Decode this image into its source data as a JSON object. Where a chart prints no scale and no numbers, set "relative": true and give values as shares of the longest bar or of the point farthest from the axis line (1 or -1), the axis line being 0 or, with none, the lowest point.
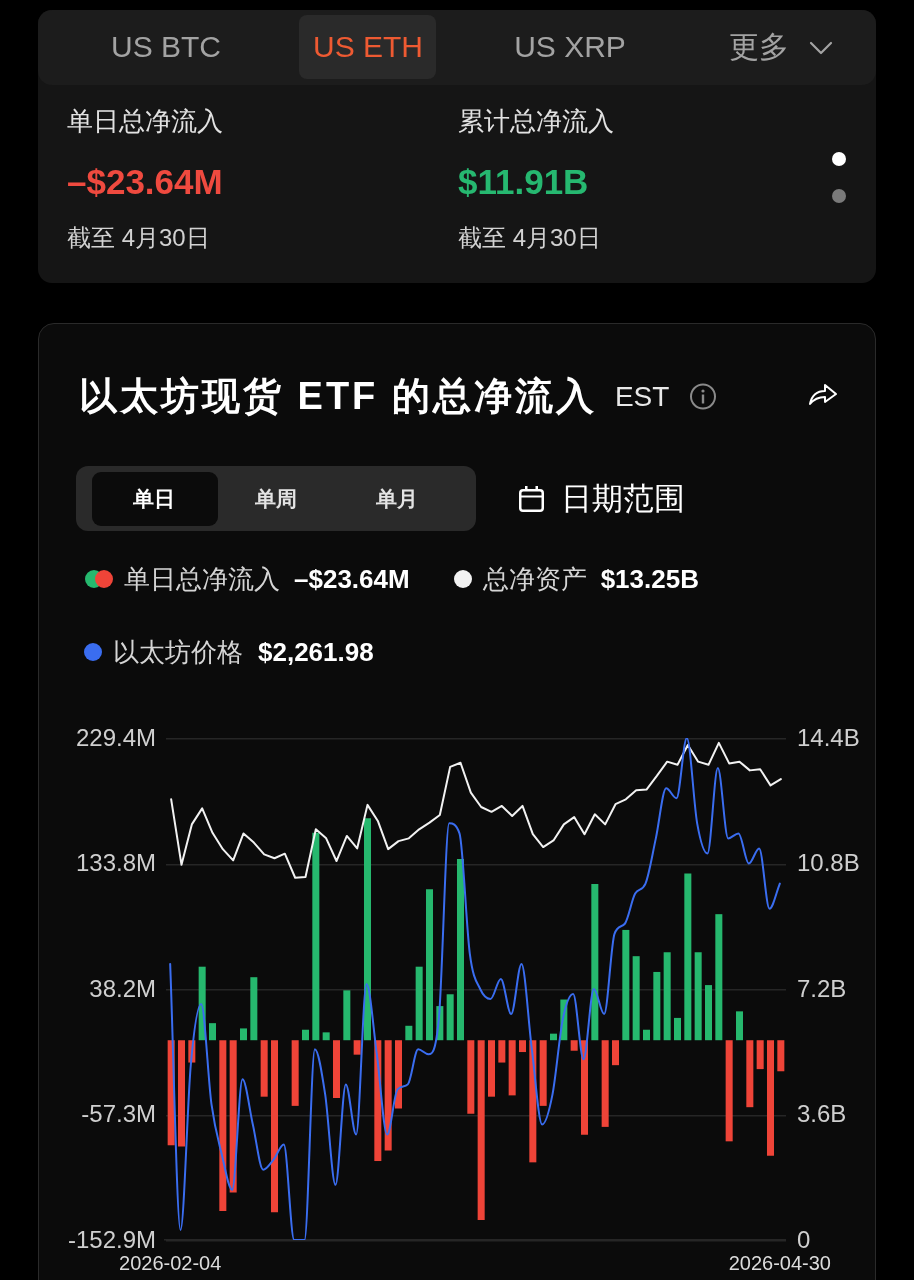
{
  "chart_data": [
    {
      "type": "other",
      "annotations": [
        "US BTC",
        "US ETH",
        "US XRP",
        "更多",
        "单日总净流入",
        "–$23.64M",
        "截至 4月30日",
        "累计总净流入",
        "$11.91B",
        "截至 4月30日"
      ]
    },
    {
      "type": "bar",
      "title": "以太坊现货 ETF 的总净流入",
      "subtitle": "EST",
      "tick_labels": "y",
      "categories": [
        "2026-02-04",
        null,
        null,
        null,
        null,
        null,
        null,
        null,
        null,
        null,
        null,
        null,
        null,
        null,
        null,
        null,
        null,
        null,
        null,
        null,
        null,
        null,
        null,
        null,
        null,
        null,
        null,
        null,
        null,
        null,
        null,
        null,
        null,
        null,
        null,
        null,
        null,
        null,
        null,
        null,
        null,
        null,
        null,
        null,
        null,
        null,
        null,
        null,
        null,
        null,
        null,
        null,
        null,
        null,
        null,
        null,
        null,
        null,
        null,
        "2026-04-30"
      ],
      "series": [
        {
          "name": "单日总净流入",
          "type": "bar",
          "values": [
            -80,
            -81,
            -17,
            56,
            13,
            -130,
            -116,
            9,
            48,
            -43,
            -131,
            null,
            -50,
            8,
            158,
            6,
            -44,
            38,
            -11,
            169,
            -92,
            -84,
            -52,
            11,
            56,
            115,
            26,
            35,
            138,
            -56,
            -137,
            -43,
            -17,
            -42,
            -9,
            -93,
            -50,
            5,
            31,
            -8,
            -72,
            119,
            -66,
            -19,
            84,
            64,
            8,
            52,
            67,
            17,
            127,
            67,
            42,
            96,
            -77,
            22,
            -51,
            -22,
            -88,
            -23.64
          ],
          "colors": [
            "#ef4438",
            "#ef4438",
            "#ef4438",
            "#26b86e",
            "#26b86e",
            "#ef4438",
            "#ef4438",
            "#26b86e",
            "#26b86e",
            "#ef4438",
            "#ef4438",
            "#26b86e",
            "#ef4438",
            "#26b86e",
            "#26b86e",
            "#26b86e",
            "#ef4438",
            "#26b86e",
            "#ef4438",
            "#26b86e",
            "#ef4438",
            "#ef4438",
            "#ef4438",
            "#26b86e",
            "#26b86e",
            "#26b86e",
            "#26b86e",
            "#26b86e",
            "#26b86e",
            "#ef4438",
            "#ef4438",
            "#ef4438",
            "#ef4438",
            "#ef4438",
            "#ef4438",
            "#ef4438",
            "#ef4438",
            "#26b86e",
            "#26b86e",
            "#ef4438",
            "#ef4438",
            "#26b86e",
            "#ef4438",
            "#ef4438",
            "#26b86e",
            "#26b86e",
            "#26b86e",
            "#26b86e",
            "#26b86e",
            "#26b86e",
            "#26b86e",
            "#26b86e",
            "#26b86e",
            "#26b86e",
            "#ef4438",
            "#26b86e",
            "#ef4438",
            "#ef4438",
            "#ef4438",
            "#ef4438"
          ]
        },
        {
          "name": "总净资产",
          "type": "line",
          "axis": "y2",
          "color": "#f2f2f2",
          "values": [
            12.67,
            10.79,
            11.95,
            12.41,
            11.71,
            11.24,
            10.92,
            11.69,
            11.43,
            11.09,
            10.98,
            11.11,
            10.42,
            10.44,
            11.81,
            11.55,
            10.9,
            11.62,
            11.26,
            12.51,
            12.05,
            11.24,
            11.47,
            11.55,
            11.81,
            12.0,
            12.22,
            13.6,
            13.72,
            12.86,
            12.45,
            12.31,
            12.48,
            12.19,
            12.48,
            11.67,
            11.3,
            11.49,
            11.95,
            12.16,
            11.67,
            12.24,
            11.95,
            12.53,
            12.67,
            12.93,
            12.95,
            13.34,
            13.75,
            13.66,
            14.23,
            13.75,
            13.66,
            14.29,
            13.7,
            13.75,
            13.5,
            13.53,
            13.07,
            13.25
          ]
        }
      ],
      "ylim": [
        -152.9,
        229.4
      ],
      "yticks": [
        {
          "value": -152.9,
          "label": "-152.9M"
        },
        {
          "value": -57.3,
          "label": "-57.3M"
        },
        {
          "value": 38.2,
          "label": "38.2M"
        },
        {
          "value": 133.8,
          "label": "133.8M"
        },
        {
          "value": 229.4,
          "label": "229.4M"
        }
      ],
      "y2lim": [
        0,
        14.4
      ],
      "y2ticks": [
        0,
        {
          "value": 3.6,
          "label": "3.6B"
        },
        {
          "value": 7.2,
          "label": "7.2B"
        },
        {
          "value": 10.8,
          "label": "10.8B"
        },
        {
          "value": 14.4,
          "label": "14.4B"
        }
      ],
      "grid": "y",
      "legend": "top left",
      "marker": "none",
      "annotations": [
        "单日",
        "单周",
        "单月",
        "日期范围",
        "–$23.64M",
        "$13.25B",
        "$2,261.98"
      ]
    },
    {
      "type": "line",
      "relative": true,
      "categories": [
        "2026-02-04",
        null,
        null,
        null,
        null,
        null,
        null,
        null,
        null,
        null,
        null,
        null,
        null,
        null,
        null,
        null,
        null,
        null,
        null,
        null,
        null,
        null,
        null,
        null,
        null,
        null,
        null,
        null,
        null,
        null,
        null,
        null,
        null,
        null,
        null,
        null,
        null,
        null,
        null,
        null,
        null,
        null,
        null,
        null,
        null,
        null,
        null,
        null,
        null,
        null,
        null,
        null,
        null,
        null,
        null,
        null,
        null,
        null,
        null,
        "2026-04-30"
      ],
      "series": [
        {
          "name": "以太坊价格",
          "color": "#3a6df0",
          "values": [
            0.55,
            0.02,
            0.35,
            0.47,
            0.27,
            0.17,
            0.1,
            0.32,
            0.23,
            0.14,
            0.16,
            0.19,
            0,
            0,
            0.38,
            0.29,
            0.11,
            0.31,
            0.21,
            0.51,
            0.37,
            0.21,
            0.3,
            0.31,
            0.38,
            0.37,
            0.44,
            0.83,
            0.81,
            0.57,
            0.5,
            0.48,
            0.52,
            0.45,
            0.55,
            0.38,
            0.23,
            0.29,
            0.44,
            0.49,
            0.36,
            0.5,
            0.45,
            0.61,
            0.63,
            0.69,
            0.71,
            0.8,
            0.9,
            0.88,
            1,
            0.83,
            0.77,
            0.94,
            0.8,
            0.81,
            0.75,
            0.78,
            0.66,
            0.71
          ]
        }
      ],
      "legend": "top left",
      "marker": "none"
    }
  ]
}
